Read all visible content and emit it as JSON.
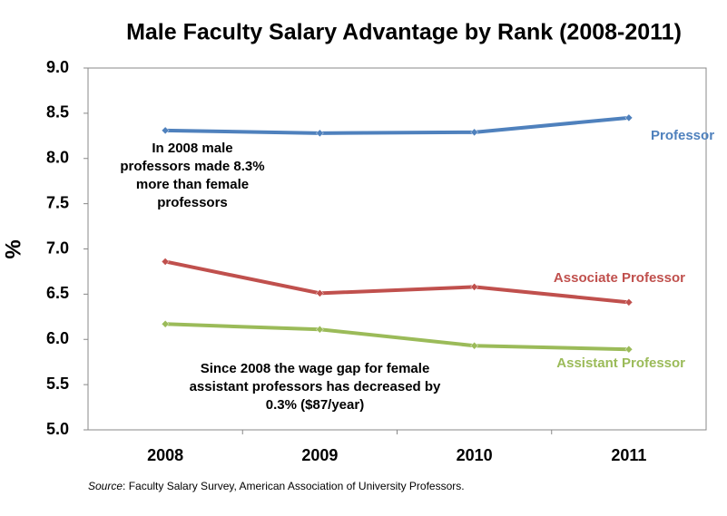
{
  "chart_data": {
    "type": "line",
    "title": "Male Faculty Salary Advantage by Rank (2008-2011)",
    "y_label": "%",
    "categories": [
      "2008",
      "2009",
      "2010",
      "2011"
    ],
    "series": [
      {
        "name": "Professor",
        "color": "#4f81bd",
        "values": [
          8.31,
          8.28,
          8.29,
          8.45
        ]
      },
      {
        "name": "Associate Professor",
        "color": "#c0504d",
        "values": [
          6.86,
          6.51,
          6.58,
          6.41
        ]
      },
      {
        "name": "Assistant Professor",
        "color": "#9bbb59",
        "values": [
          6.17,
          6.11,
          5.93,
          5.89
        ]
      }
    ],
    "ylim": [
      5,
      9
    ],
    "yticks": [
      {
        "value": 5,
        "label": "5.0"
      },
      5.5,
      {
        "value": 6,
        "label": "6.0"
      },
      6.5,
      {
        "value": 7,
        "label": "7.0"
      },
      7.5,
      {
        "value": 8,
        "label": "8.0"
      },
      8.5,
      {
        "value": 9,
        "label": "9.0"
      }
    ],
    "grid": false,
    "annotations": [
      {
        "lines": [
          "In 2008 male",
          "professors made 8.3%",
          "more than female",
          "professors"
        ]
      },
      {
        "lines": [
          "Since 2008 the wage gap for female",
          "assistant professors has decreased by",
          "0.3% ($87/year)"
        ]
      }
    ],
    "source_label": "Source",
    "source_text": ": Faculty Salary Survey, American Association of University Professors."
  }
}
